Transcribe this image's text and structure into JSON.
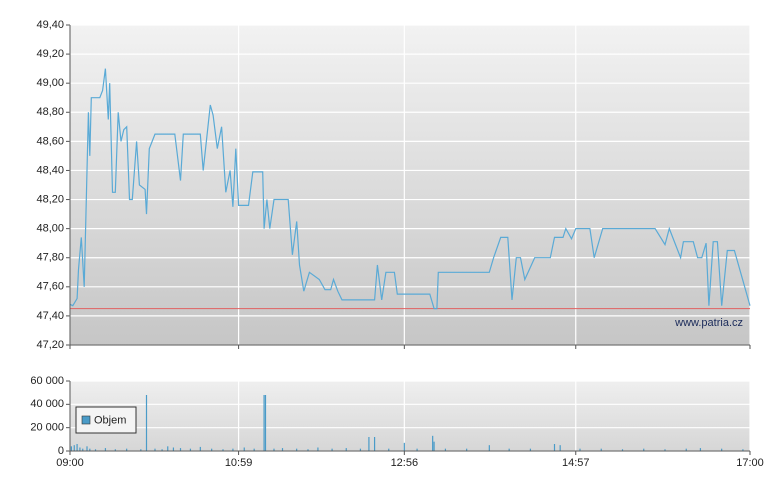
{
  "chart_data": [
    {
      "type": "line",
      "x": [
        "09:00",
        "09:02",
        "09:05",
        "09:06",
        "09:08",
        "09:10",
        "09:11",
        "09:13",
        "09:14",
        "09:15",
        "09:21",
        "09:23",
        "09:25",
        "09:27",
        "09:28",
        "09:30",
        "09:32",
        "09:34",
        "09:36",
        "09:38",
        "09:40",
        "09:42",
        "09:44",
        "09:47",
        "09:49",
        "09:53",
        "09:54",
        "09:56",
        "10:00",
        "10:14",
        "10:18",
        "10:20",
        "10:32",
        "10:34",
        "10:39",
        "10:41",
        "10:44",
        "10:47",
        "10:50",
        "10:53",
        "10:55",
        "10:57",
        "10:59",
        "11:06",
        "11:09",
        "11:16",
        "11:17",
        "11:19",
        "11:21",
        "11:24",
        "11:34",
        "11:37",
        "11:40",
        "11:42",
        "11:45",
        "11:49",
        "11:56",
        "12:00",
        "12:04",
        "12:06",
        "12:09",
        "12:12",
        "12:35",
        "12:37",
        "12:40",
        "12:43",
        "12:49",
        "12:51",
        "13:14",
        "13:17",
        "13:19",
        "13:20",
        "13:56",
        "13:59",
        "14:04",
        "14:09",
        "14:12",
        "14:15",
        "14:18",
        "14:21",
        "14:28",
        "14:39",
        "14:42",
        "14:48",
        "14:50",
        "14:54",
        "14:57",
        "15:07",
        "15:10",
        "15:16",
        "15:53",
        "16:00",
        "16:03",
        "16:11",
        "16:13",
        "16:20",
        "16:23",
        "16:26",
        "16:29",
        "16:31",
        "16:34",
        "16:37",
        "16:40",
        "16:44",
        "16:49",
        "17:00"
      ],
      "values": [
        47.48,
        47.47,
        47.52,
        47.72,
        47.94,
        47.6,
        48.0,
        48.8,
        48.5,
        48.9,
        48.9,
        48.95,
        49.1,
        48.75,
        49.0,
        48.25,
        48.25,
        48.8,
        48.6,
        48.68,
        48.7,
        48.2,
        48.2,
        48.6,
        48.3,
        48.27,
        48.1,
        48.55,
        48.65,
        48.65,
        48.33,
        48.65,
        48.65,
        48.4,
        48.85,
        48.78,
        48.55,
        48.7,
        48.25,
        48.4,
        48.15,
        48.55,
        48.16,
        48.16,
        48.39,
        48.39,
        48.0,
        48.2,
        48.0,
        48.2,
        48.2,
        47.82,
        48.05,
        47.75,
        47.57,
        47.7,
        47.65,
        47.58,
        47.58,
        47.65,
        47.57,
        47.51,
        47.51,
        47.75,
        47.51,
        47.7,
        47.7,
        47.55,
        47.55,
        47.45,
        47.45,
        47.7,
        47.7,
        47.8,
        47.94,
        47.94,
        47.51,
        47.8,
        47.8,
        47.65,
        47.8,
        47.8,
        47.94,
        47.94,
        48.0,
        47.93,
        48.0,
        48.0,
        47.8,
        48.0,
        48.0,
        47.89,
        48.0,
        47.8,
        47.91,
        47.91,
        47.8,
        47.8,
        47.9,
        47.47,
        47.91,
        47.91,
        47.47,
        47.85,
        47.85,
        47.47
      ],
      "color": "#5aaad6",
      "reference_line": {
        "value": 47.45,
        "color": "#e06060"
      },
      "annotation": "www.patria.cz",
      "xlim": [
        "09:00",
        "17:00"
      ],
      "xticks": [
        "09:00",
        "10:59",
        "12:56",
        "14:57",
        "17:00"
      ],
      "ylim": [
        47.2,
        49.4
      ],
      "yticks": [
        {
          "value": 47.2,
          "label": "47,20"
        },
        {
          "value": 47.4,
          "label": "47,40"
        },
        {
          "value": 47.6,
          "label": "47,60"
        },
        {
          "value": 47.8,
          "label": "47,80"
        },
        {
          "value": 48.0,
          "label": "48,00"
        },
        {
          "value": 48.2,
          "label": "48,20"
        },
        {
          "value": 48.4,
          "label": "48,40"
        },
        {
          "value": 48.6,
          "label": "48,60"
        },
        {
          "value": 48.8,
          "label": "48,80"
        },
        {
          "value": 49.0,
          "label": "49,00"
        },
        {
          "value": 49.2,
          "label": "49,20"
        },
        {
          "value": 49.4,
          "label": "49,40"
        }
      ],
      "grid": true
    },
    {
      "type": "bar",
      "x": [
        "09:01",
        "09:03",
        "09:05",
        "09:07",
        "09:09",
        "09:12",
        "09:14",
        "09:18",
        "09:25",
        "09:32",
        "09:40",
        "09:50",
        "09:54",
        "10:00",
        "10:05",
        "10:09",
        "10:13",
        "10:18",
        "10:25",
        "10:32",
        "10:40",
        "10:48",
        "10:55",
        "11:03",
        "11:10",
        "11:17",
        "11:18",
        "11:24",
        "11:30",
        "11:40",
        "11:48",
        "11:55",
        "12:05",
        "12:15",
        "12:25",
        "12:31",
        "12:35",
        "12:45",
        "12:56",
        "13:05",
        "13:16",
        "13:17",
        "13:25",
        "13:40",
        "13:56",
        "14:10",
        "14:25",
        "14:42",
        "14:46",
        "15:00",
        "15:15",
        "15:30",
        "15:45",
        "16:00",
        "16:15",
        "16:25",
        "16:40",
        "16:55"
      ],
      "series": [
        {
          "name": "Objem",
          "color": "#4a9bc8",
          "values": [
            4000,
            5000,
            6000,
            3000,
            2000,
            4000,
            2000,
            1500,
            2500,
            1500,
            2000,
            1500,
            48000,
            2000,
            1500,
            4000,
            3000,
            2500,
            2000,
            3500,
            2000,
            1500,
            2000,
            3000,
            2000,
            48000,
            48000,
            2000,
            2500,
            2000,
            1500,
            3000,
            2000,
            2500,
            2000,
            12000,
            12000,
            2000,
            7000,
            2000,
            13000,
            8000,
            2000,
            2000,
            5000,
            2000,
            2000,
            6000,
            5000,
            2000,
            2000,
            1500,
            2000,
            1500,
            2000,
            2500,
            2000,
            1500
          ]
        }
      ],
      "legend": "upper left",
      "xlim": [
        "09:00",
        "17:00"
      ],
      "xticks": [
        "09:00",
        "10:59",
        "12:56",
        "14:57",
        "17:00"
      ],
      "ylim": [
        0,
        60000
      ],
      "yticks": [
        0,
        {
          "value": 20000,
          "label": "20 000"
        },
        {
          "value": 40000,
          "label": "40 000"
        },
        {
          "value": 60000,
          "label": "60 000"
        }
      ],
      "grid": true
    }
  ]
}
